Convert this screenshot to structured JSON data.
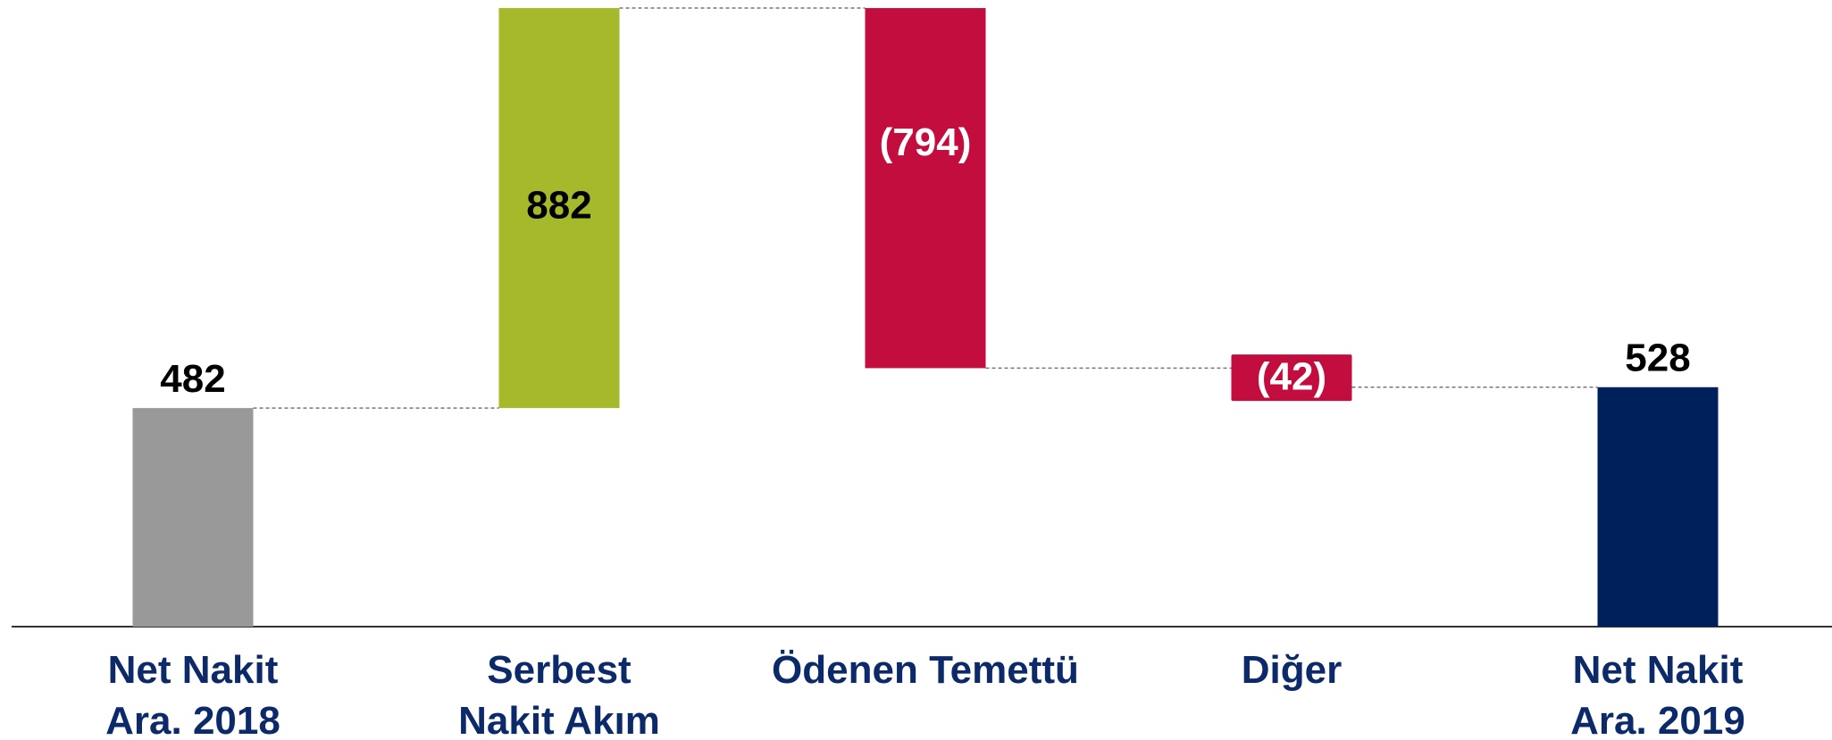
{
  "chart_data": {
    "type": "waterfall",
    "categories": [
      "Net Nakit\nAra. 2018",
      "Serbest\nNakit Akım",
      "Ödenen Temettü",
      "Diğer",
      "Net Nakit\nAra. 2019"
    ],
    "values": [
      482,
      882,
      -794,
      -42,
      528
    ],
    "value_labels": [
      "482",
      "882",
      "(794)",
      "(42)",
      "528"
    ],
    "colors": [
      "#999999",
      "#a6b92a",
      "#c30d3e",
      "#c30d3e",
      "#00205b"
    ],
    "ylim": [
      0,
      1370
    ]
  }
}
